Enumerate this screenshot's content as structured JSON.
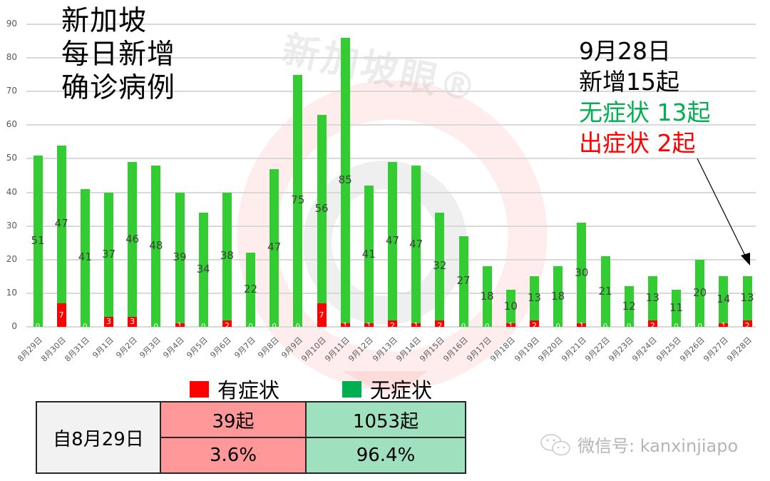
{
  "title": {
    "lines": [
      "新加坡",
      "每日新增",
      "确诊病例"
    ]
  },
  "annotation": {
    "date": "9月28日",
    "total": "新增15起",
    "asymptomatic": "无症状 13起",
    "symptomatic": "出症状 2起",
    "asymptomatic_color": "#00b050",
    "symptomatic_color": "#ff0000"
  },
  "legend": {
    "symptomatic": {
      "label": "有症状",
      "color": "#ff0000"
    },
    "asymptomatic": {
      "label": "无症状",
      "color": "#00b050"
    }
  },
  "summary_table": {
    "row_header": "自8月29日",
    "symptomatic_count": "39起",
    "asymptomatic_count": "1053起",
    "symptomatic_pct": "3.6%",
    "asymptomatic_pct": "96.4%",
    "symptomatic_bg": "#ff9999",
    "asymptomatic_bg": "#9fe0bf",
    "header_bg": "#f2f2f2"
  },
  "watermark": {
    "brand": "新加坡眼®",
    "wechat": "微信号: kanxinjiapo"
  },
  "chart_data": {
    "type": "bar",
    "stacked": true,
    "title": "新加坡 每日新增 确诊病例",
    "xlabel": "",
    "ylabel": "",
    "ylim": [
      0,
      90
    ],
    "yticks": [
      0,
      10,
      20,
      30,
      40,
      50,
      60,
      70,
      80,
      90
    ],
    "grid": true,
    "legend_position": "bottom",
    "categories": [
      "8月29日",
      "8月30日",
      "8月31日",
      "9月1日",
      "9月2日",
      "9月3日",
      "9月4日",
      "9月5日",
      "9月6日",
      "9月7日",
      "9月8日",
      "9月9日",
      "9月10日",
      "9月11日",
      "9月12日",
      "9月13日",
      "9月14日",
      "9月15日",
      "9月16日",
      "9月17日",
      "9月18日",
      "9月19日",
      "9月20日",
      "9月21日",
      "9月22日",
      "9月23日",
      "9月24日",
      "9月25日",
      "9月26日",
      "9月27日",
      "9月28日"
    ],
    "series": [
      {
        "name": "有症状",
        "color": "#ff0000",
        "values": [
          0,
          7,
          0,
          3,
          3,
          0,
          1,
          0,
          2,
          0,
          0,
          0,
          7,
          1,
          1,
          2,
          1,
          2,
          0,
          0,
          1,
          2,
          0,
          1,
          0,
          0,
          2,
          0,
          0,
          1,
          2
        ]
      },
      {
        "name": "无症状",
        "color": "#33cc33",
        "values": [
          51,
          47,
          41,
          37,
          46,
          48,
          39,
          34,
          38,
          22,
          47,
          75,
          56,
          85,
          41,
          47,
          47,
          32,
          27,
          18,
          10,
          13,
          18,
          30,
          21,
          12,
          13,
          11,
          20,
          14,
          13
        ]
      }
    ],
    "annotations": [
      "9月28日 新增15起",
      "无症状 13起",
      "出症状 2起"
    ]
  }
}
